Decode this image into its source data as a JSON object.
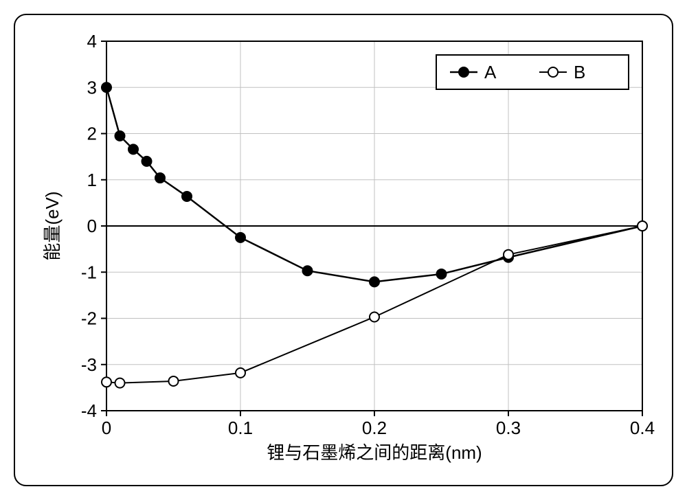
{
  "chart": {
    "type": "line-scatter",
    "background_color": "#ffffff",
    "outer_border_color": "#000000",
    "plot_border_color": "#000000",
    "grid_color": "#c0c0c0",
    "axis_line_width": 2,
    "grid_line_width": 1,
    "x_axis": {
      "label": "锂与石墨烯之间的距离(nm)",
      "min": 0,
      "max": 0.4,
      "ticks": [
        0,
        0.1,
        0.2,
        0.3,
        0.4
      ],
      "tick_labels": [
        "0",
        "0.1",
        "0.2",
        "0.3",
        "0.4"
      ]
    },
    "y_axis": {
      "label": "能量(eV)",
      "min": -4,
      "max": 4,
      "ticks": [
        -4,
        -3,
        -2,
        -1,
        0,
        1,
        2,
        3,
        4
      ],
      "tick_labels": [
        "-4",
        "-3",
        "-2",
        "-1",
        "0",
        "1",
        "2",
        "3",
        "4"
      ]
    },
    "zero_line": {
      "y": 0,
      "color": "#000000",
      "width": 2
    },
    "series": [
      {
        "name": "A",
        "marker": "filled-circle",
        "marker_fill": "#000000",
        "marker_stroke": "#000000",
        "marker_radius": 7,
        "line_color": "#000000",
        "line_width": 2.5,
        "points": [
          {
            "x": 0.0,
            "y": 3.0
          },
          {
            "x": 0.01,
            "y": 1.95
          },
          {
            "x": 0.02,
            "y": 1.66
          },
          {
            "x": 0.03,
            "y": 1.4
          },
          {
            "x": 0.04,
            "y": 1.04
          },
          {
            "x": 0.06,
            "y": 0.64
          },
          {
            "x": 0.1,
            "y": -0.25
          },
          {
            "x": 0.15,
            "y": -0.97
          },
          {
            "x": 0.2,
            "y": -1.21
          },
          {
            "x": 0.25,
            "y": -1.04
          },
          {
            "x": 0.3,
            "y": -0.68
          },
          {
            "x": 0.4,
            "y": 0.0
          }
        ]
      },
      {
        "name": "B",
        "marker": "open-circle",
        "marker_fill": "#ffffff",
        "marker_stroke": "#000000",
        "marker_radius": 7,
        "line_color": "#000000",
        "line_width": 2,
        "points": [
          {
            "x": 0.0,
            "y": -3.38
          },
          {
            "x": 0.01,
            "y": -3.4
          },
          {
            "x": 0.05,
            "y": -3.36
          },
          {
            "x": 0.1,
            "y": -3.18
          },
          {
            "x": 0.2,
            "y": -1.97
          },
          {
            "x": 0.3,
            "y": -0.62
          },
          {
            "x": 0.4,
            "y": 0.0
          }
        ]
      }
    ],
    "legend": {
      "border_color": "#000000",
      "bg": "#ffffff",
      "items": [
        {
          "label": "A"
        },
        {
          "label": "B"
        }
      ]
    },
    "font": {
      "axis_label_size": 26,
      "tick_label_size": 26,
      "legend_size": 26
    }
  }
}
